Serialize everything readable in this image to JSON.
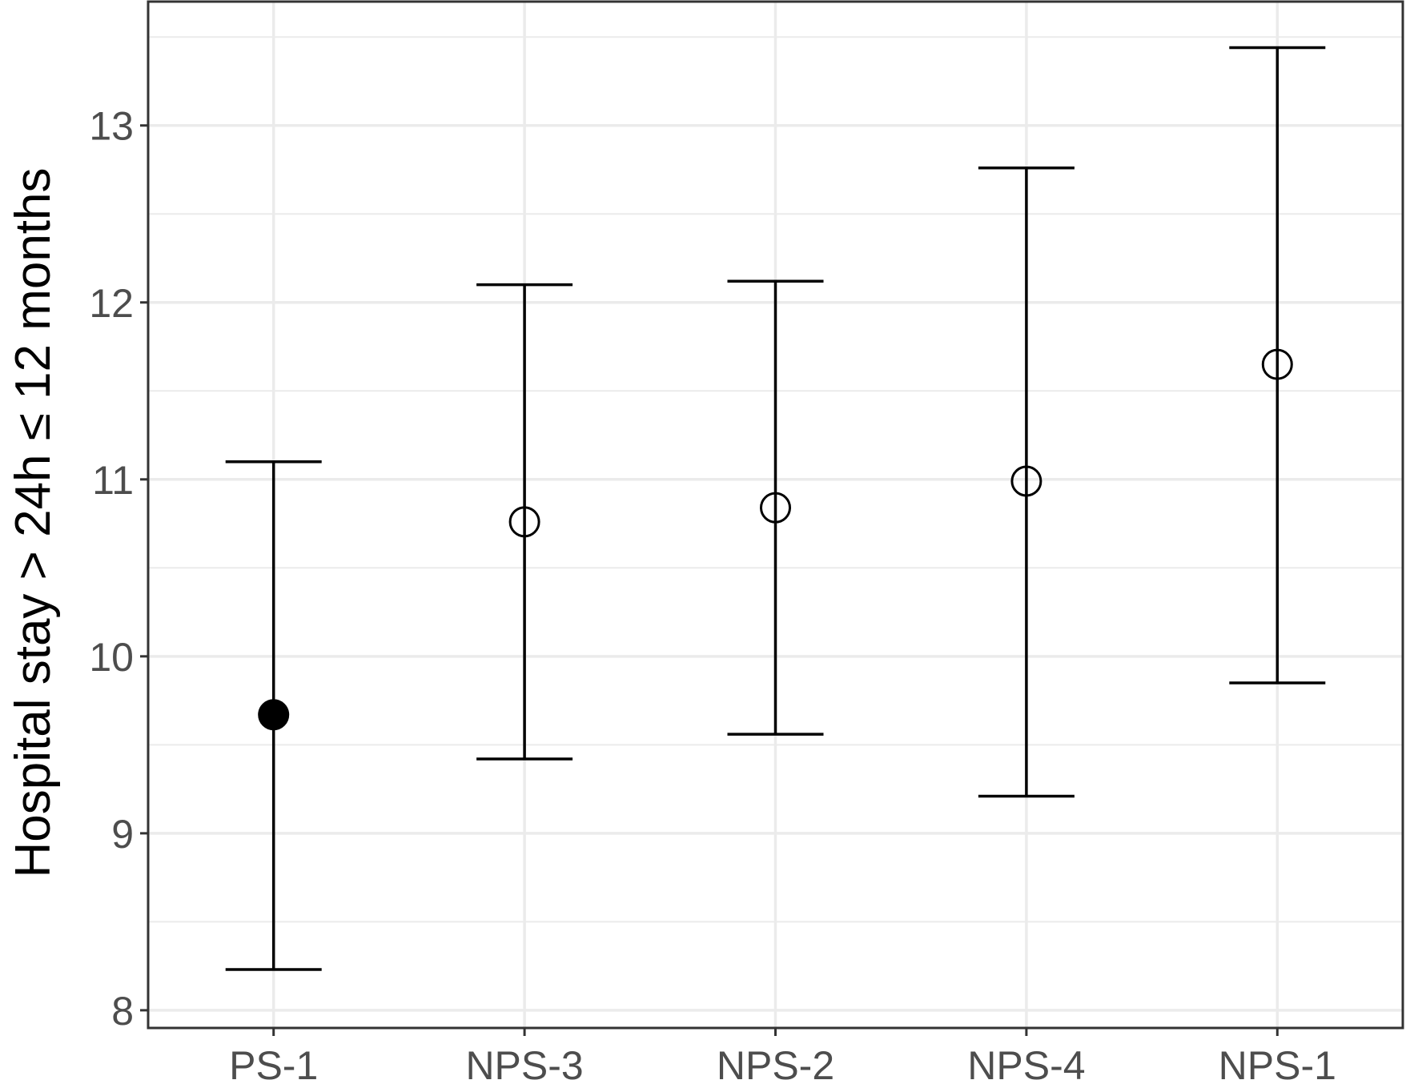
{
  "chart_data": {
    "type": "scatter",
    "ylabel": "Hospital stay > 24h ≤ 12 months",
    "xlabel": "",
    "categories": [
      "PS-1",
      "NPS-3",
      "NPS-2",
      "NPS-4",
      "NPS-1"
    ],
    "ylim": [
      7.9,
      13.7
    ],
    "yticks": [
      8,
      9,
      10,
      11,
      12,
      13
    ],
    "grid": true,
    "points": [
      {
        "category": "PS-1",
        "estimate": 9.67,
        "lower": 8.23,
        "upper": 11.1,
        "filled": true
      },
      {
        "category": "NPS-3",
        "estimate": 10.76,
        "lower": 9.42,
        "upper": 12.1,
        "filled": false
      },
      {
        "category": "NPS-2",
        "estimate": 10.84,
        "lower": 9.56,
        "upper": 12.12,
        "filled": false
      },
      {
        "category": "NPS-4",
        "estimate": 10.99,
        "lower": 9.21,
        "upper": 12.76,
        "filled": false
      },
      {
        "category": "NPS-1",
        "estimate": 11.65,
        "lower": 9.85,
        "upper": 13.44,
        "filled": false
      }
    ],
    "colors": {
      "grid": "#ebebeb",
      "border": "#333333",
      "marks": "#000000",
      "tick_text": "#4d4d4d"
    }
  }
}
